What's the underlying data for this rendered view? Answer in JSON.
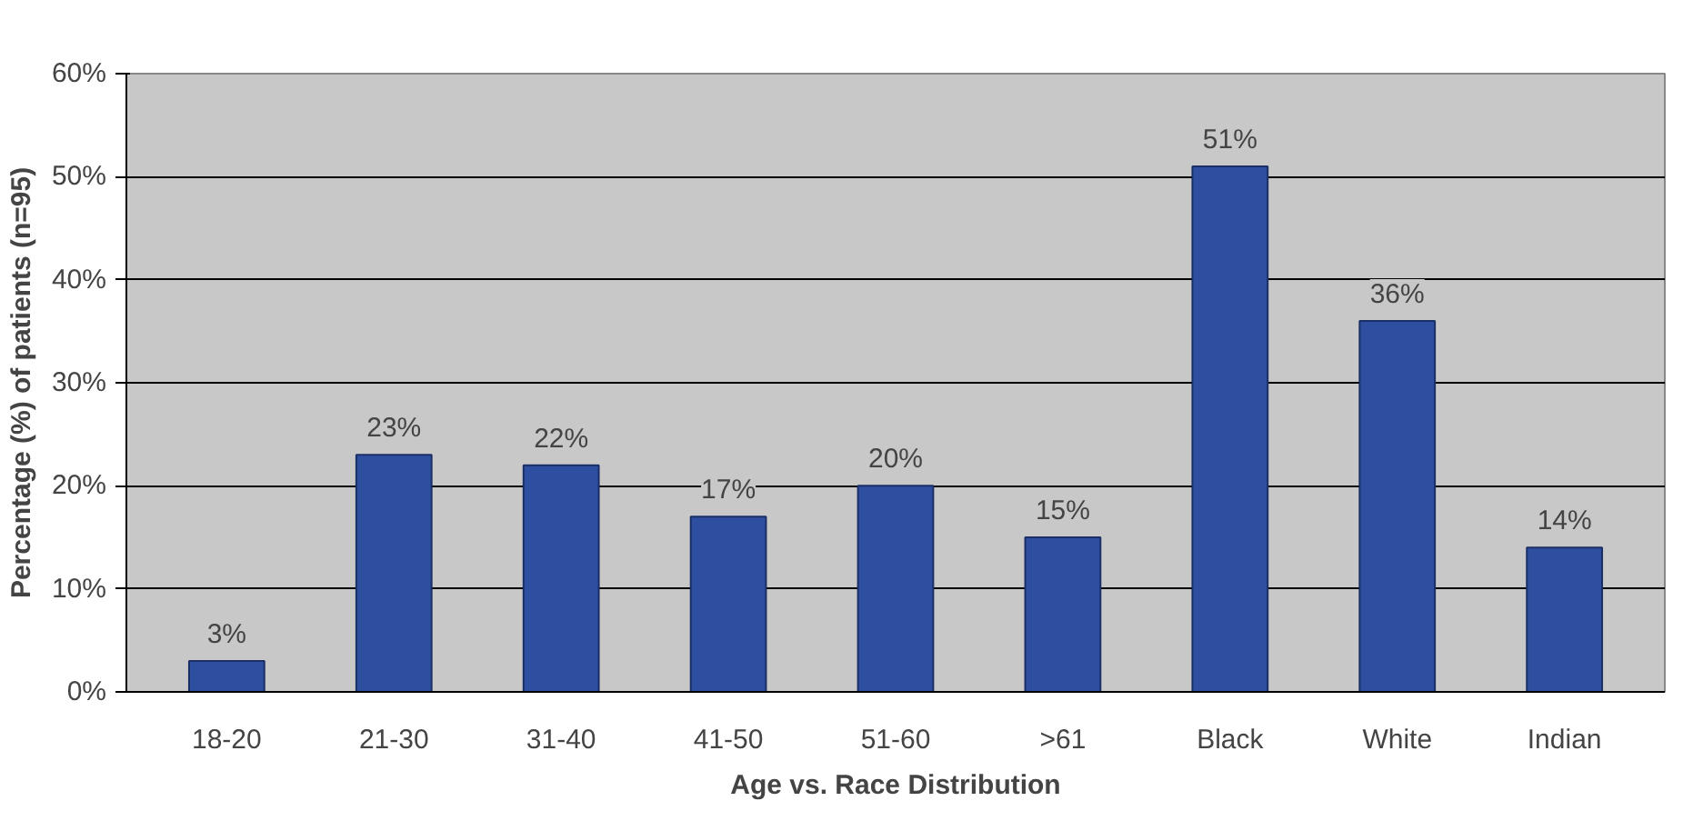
{
  "chart_data": {
    "type": "bar",
    "xlabel": "Age vs. Race Distribution",
    "ylabel": "Percentage (%) of patients (n=95)",
    "categories": [
      "18-20",
      "21-30",
      "31-40",
      "41-50",
      "51-60",
      ">61",
      "Black",
      "White",
      "Indian"
    ],
    "values": [
      3,
      23,
      22,
      17,
      20,
      15,
      51,
      36,
      14
    ],
    "value_labels": [
      "3%",
      "23%",
      "22%",
      "17%",
      "20%",
      "15%",
      "51%",
      "36%",
      "14%"
    ],
    "color": "#2e4fa0",
    "ylim": [
      0,
      60
    ],
    "yticks": [
      {
        "value": 0,
        "label": "0%"
      },
      {
        "value": 10,
        "label": "10%"
      },
      {
        "value": 20,
        "label": "20%"
      },
      {
        "value": 30,
        "label": "30%"
      },
      {
        "value": 40,
        "label": "40%"
      },
      {
        "value": 50,
        "label": "50%"
      },
      {
        "value": 60,
        "label": "60%"
      }
    ],
    "grid": "y"
  }
}
